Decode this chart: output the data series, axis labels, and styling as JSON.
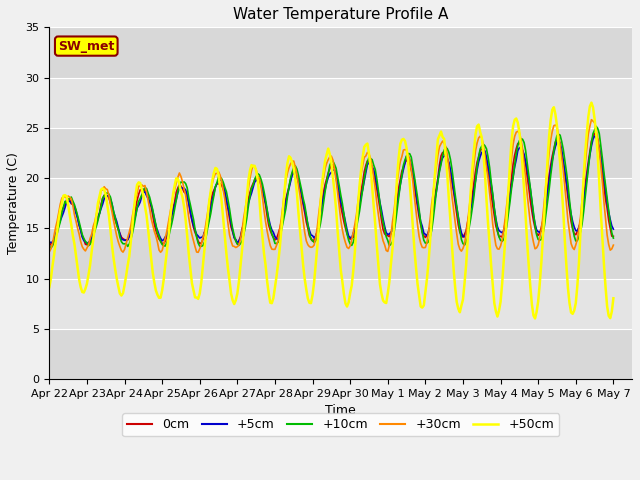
{
  "title": "Water Temperature Profile A",
  "xlabel": "Time",
  "ylabel": "Temperature (C)",
  "ylim": [
    0,
    35
  ],
  "xtick_labels": [
    "Apr 22",
    "Apr 23",
    "Apr 24",
    "Apr 25",
    "Apr 26",
    "Apr 27",
    "Apr 28",
    "Apr 29",
    "Apr 30",
    "May 1",
    "May 2",
    "May 3",
    "May 4",
    "May 5",
    "May 6",
    "May 7"
  ],
  "legend_label": "SW_met",
  "legend_box_color": "#ffff00",
  "legend_box_edge": "#8B0000",
  "line_labels": [
    "0cm",
    "+5cm",
    "+10cm",
    "+30cm",
    "+50cm"
  ],
  "line_colors": [
    "#cc0000",
    "#0000cc",
    "#00bb00",
    "#ff8800",
    "#ffff00"
  ],
  "line_widths": [
    1.2,
    1.2,
    1.2,
    1.2,
    1.8
  ],
  "fig_bg": "#f0f0f0",
  "plot_bg": "#dcdcdc",
  "band_colors": [
    "#d8d8d8",
    "#e4e4e4"
  ],
  "title_fontsize": 11,
  "axis_fontsize": 9,
  "tick_fontsize": 8
}
